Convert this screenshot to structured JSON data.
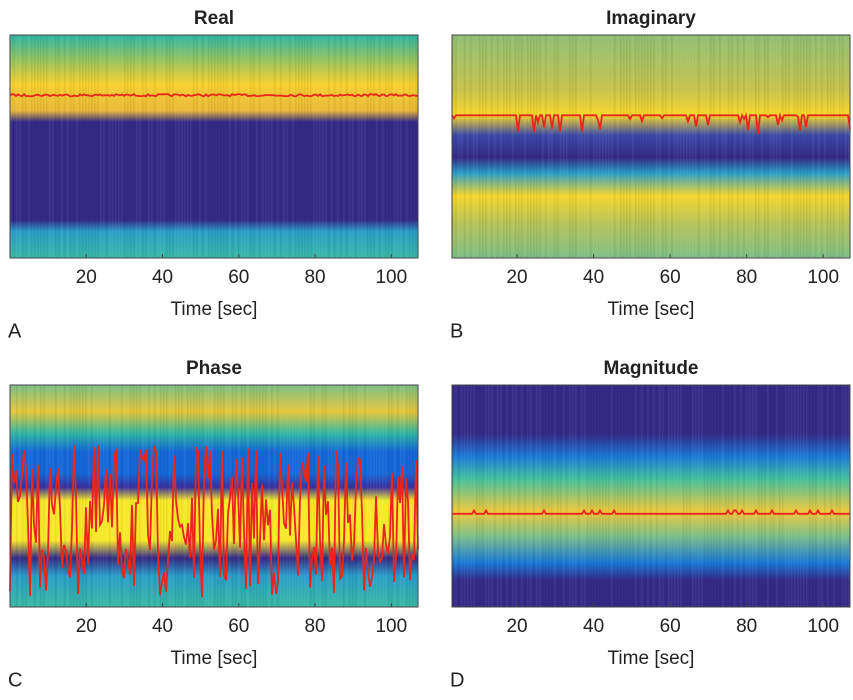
{
  "chart_data": [
    {
      "type": "heatmap",
      "title": "Real",
      "x_label": "Time [sec]",
      "panel_label": "A",
      "xlim": [
        0,
        107
      ],
      "xticks": [
        20,
        40,
        60,
        80,
        100
      ]
    },
    {
      "type": "heatmap",
      "title": "Imaginary",
      "x_label": "Time [sec]",
      "panel_label": "B",
      "xlim": [
        3,
        107
      ],
      "xticks": [
        20,
        40,
        60,
        80,
        100
      ]
    },
    {
      "type": "heatmap",
      "title": "Phase",
      "x_label": "Time [sec]",
      "panel_label": "C",
      "xlim": [
        0,
        107
      ],
      "xticks": [
        20,
        40,
        60,
        80,
        100
      ]
    },
    {
      "type": "heatmap",
      "title": "Magnitude",
      "x_label": "Time [sec]",
      "panel_label": "D",
      "xlim": [
        3,
        107
      ],
      "xticks": [
        20,
        40,
        60,
        80,
        100
      ]
    }
  ]
}
